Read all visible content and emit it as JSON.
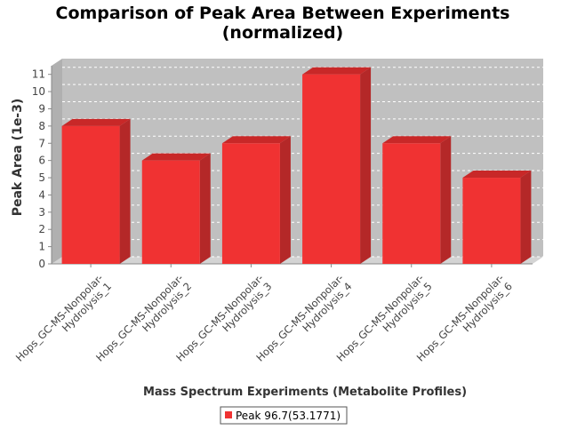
{
  "chart_data": {
    "type": "bar",
    "title_line1": "Comparison of Peak Area Between Experiments",
    "title_line2": "(normalized)",
    "xlabel": "Mass Spectrum Experiments (Metabolite Profiles)",
    "ylabel": "Peak Area (1e-3)",
    "categories": [
      [
        "Hops_GC-MS-Nonpolar-",
        "Hydrolysis_1"
      ],
      [
        "Hops_GC-MS-Nonpolar-",
        "Hydrolysis_2"
      ],
      [
        "Hops_GC-MS-Nonpolar-",
        "Hydrolysis_3"
      ],
      [
        "Hops_GC-MS-Nonpolar-",
        "Hydrolysis_4"
      ],
      [
        "Hops_GC-MS-Nonpolar-",
        "Hydrolysis_5"
      ],
      [
        "Hops_GC-MS-Nonpolar-",
        "Hydrolysis_6"
      ]
    ],
    "series": [
      {
        "name": "Peak 96.7(53.1771)",
        "values": [
          8,
          6,
          7,
          11,
          7,
          5
        ]
      }
    ],
    "ylim": [
      0,
      11.5
    ],
    "yticks": [
      "0",
      "1",
      "2",
      "3",
      "4",
      "5",
      "6",
      "7",
      "8",
      "9",
      "10",
      "11"
    ],
    "grid": true,
    "legend_position": "bottom",
    "colors": {
      "bar": "#f03232",
      "bar_top": "#c82828",
      "bar_side": "#b42828",
      "plot_bg": "#c0c0c0",
      "plot_floor": "#d4d4d4",
      "grid": "#ffffff",
      "axis": "#888888",
      "text": "#000000"
    }
  }
}
